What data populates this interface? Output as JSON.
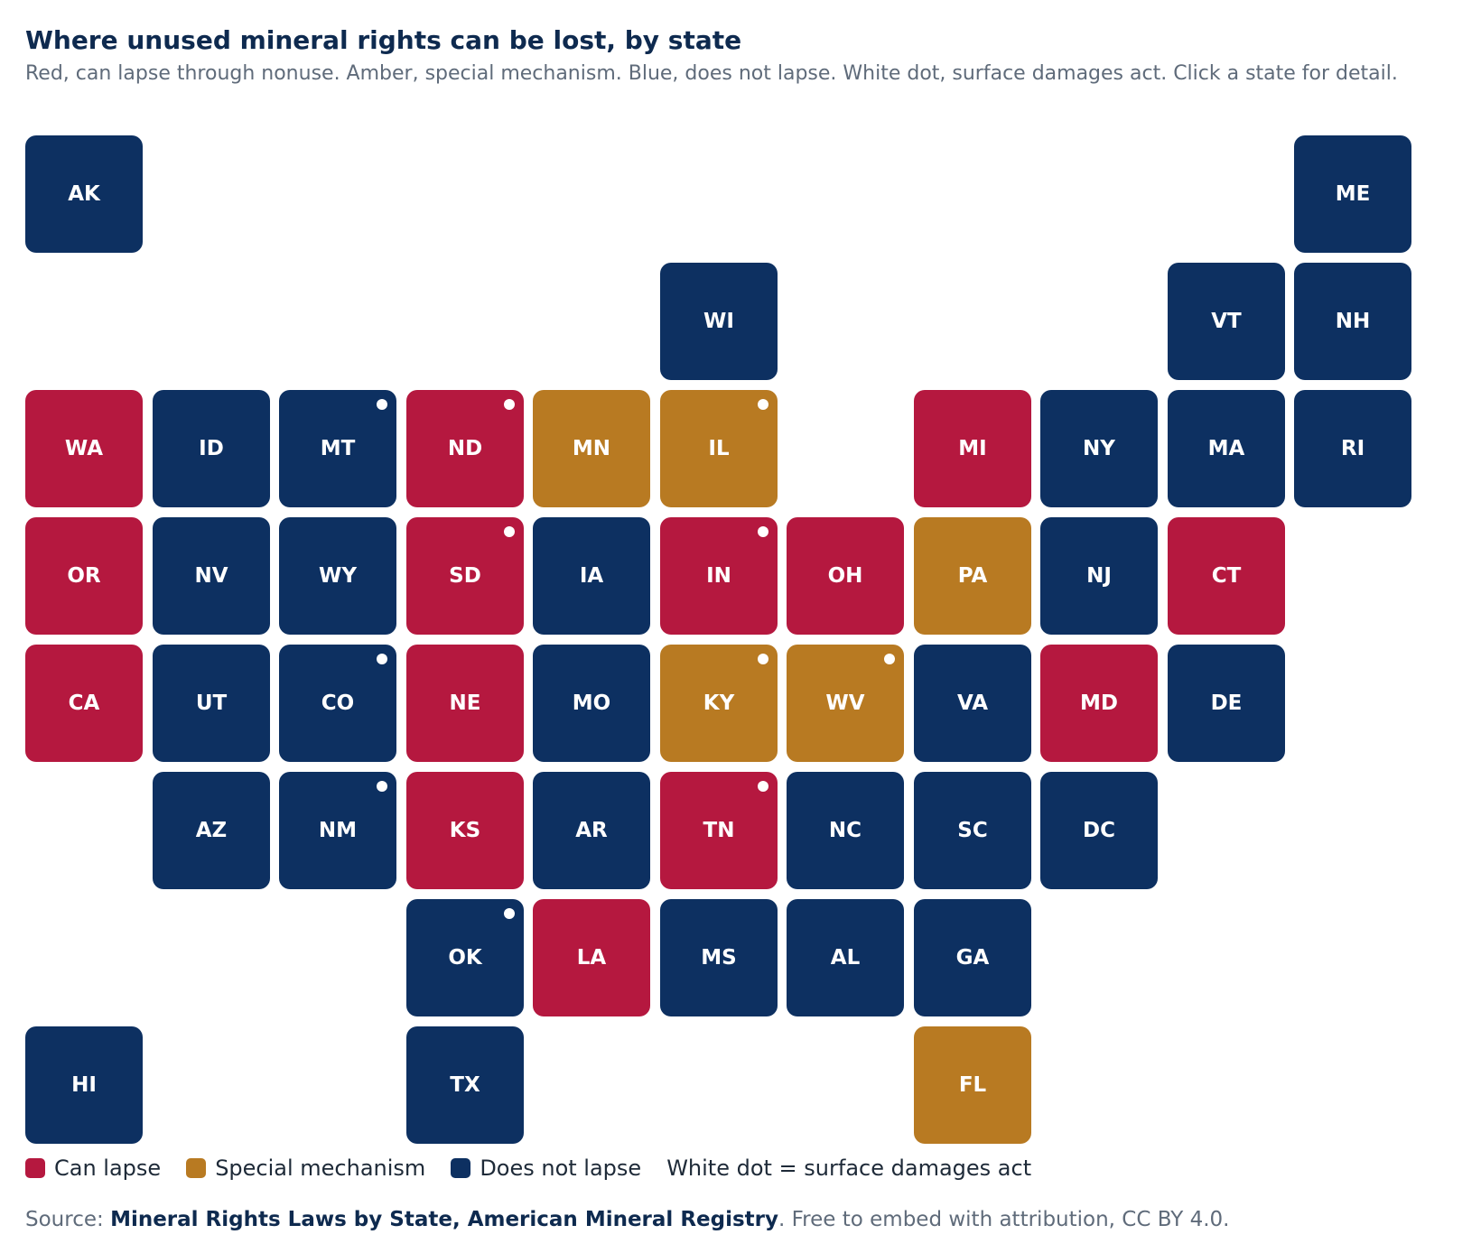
{
  "header": {
    "title": "Where unused mineral rights can be lost, by state",
    "subtitle": "Red, can lapse through nonuse. Amber, special mechanism. Blue, does not lapse. White dot, surface damages act. Click a state for detail."
  },
  "colors": {
    "lapse": "#b5183f",
    "special": "#b87a22",
    "none": "#0d3061"
  },
  "states": [
    {
      "abbr": "AK",
      "col": 0,
      "row": 0,
      "status": "none",
      "dot": false
    },
    {
      "abbr": "ME",
      "col": 10,
      "row": 0,
      "status": "none",
      "dot": false
    },
    {
      "abbr": "WI",
      "col": 5,
      "row": 1,
      "status": "none",
      "dot": false
    },
    {
      "abbr": "VT",
      "col": 9,
      "row": 1,
      "status": "none",
      "dot": false
    },
    {
      "abbr": "NH",
      "col": 10,
      "row": 1,
      "status": "none",
      "dot": false
    },
    {
      "abbr": "WA",
      "col": 0,
      "row": 2,
      "status": "lapse",
      "dot": false
    },
    {
      "abbr": "ID",
      "col": 1,
      "row": 2,
      "status": "none",
      "dot": false
    },
    {
      "abbr": "MT",
      "col": 2,
      "row": 2,
      "status": "none",
      "dot": true
    },
    {
      "abbr": "ND",
      "col": 3,
      "row": 2,
      "status": "lapse",
      "dot": true
    },
    {
      "abbr": "MN",
      "col": 4,
      "row": 2,
      "status": "special",
      "dot": false
    },
    {
      "abbr": "IL",
      "col": 5,
      "row": 2,
      "status": "special",
      "dot": true
    },
    {
      "abbr": "MI",
      "col": 7,
      "row": 2,
      "status": "lapse",
      "dot": false
    },
    {
      "abbr": "NY",
      "col": 8,
      "row": 2,
      "status": "none",
      "dot": false
    },
    {
      "abbr": "MA",
      "col": 9,
      "row": 2,
      "status": "none",
      "dot": false
    },
    {
      "abbr": "RI",
      "col": 10,
      "row": 2,
      "status": "none",
      "dot": false
    },
    {
      "abbr": "OR",
      "col": 0,
      "row": 3,
      "status": "lapse",
      "dot": false
    },
    {
      "abbr": "NV",
      "col": 1,
      "row": 3,
      "status": "none",
      "dot": false
    },
    {
      "abbr": "WY",
      "col": 2,
      "row": 3,
      "status": "none",
      "dot": false
    },
    {
      "abbr": "SD",
      "col": 3,
      "row": 3,
      "status": "lapse",
      "dot": true
    },
    {
      "abbr": "IA",
      "col": 4,
      "row": 3,
      "status": "none",
      "dot": false
    },
    {
      "abbr": "IN",
      "col": 5,
      "row": 3,
      "status": "lapse",
      "dot": true
    },
    {
      "abbr": "OH",
      "col": 6,
      "row": 3,
      "status": "lapse",
      "dot": false
    },
    {
      "abbr": "PA",
      "col": 7,
      "row": 3,
      "status": "special",
      "dot": false
    },
    {
      "abbr": "NJ",
      "col": 8,
      "row": 3,
      "status": "none",
      "dot": false
    },
    {
      "abbr": "CT",
      "col": 9,
      "row": 3,
      "status": "lapse",
      "dot": false
    },
    {
      "abbr": "CA",
      "col": 0,
      "row": 4,
      "status": "lapse",
      "dot": false
    },
    {
      "abbr": "UT",
      "col": 1,
      "row": 4,
      "status": "none",
      "dot": false
    },
    {
      "abbr": "CO",
      "col": 2,
      "row": 4,
      "status": "none",
      "dot": true
    },
    {
      "abbr": "NE",
      "col": 3,
      "row": 4,
      "status": "lapse",
      "dot": false
    },
    {
      "abbr": "MO",
      "col": 4,
      "row": 4,
      "status": "none",
      "dot": false
    },
    {
      "abbr": "KY",
      "col": 5,
      "row": 4,
      "status": "special",
      "dot": true
    },
    {
      "abbr": "WV",
      "col": 6,
      "row": 4,
      "status": "special",
      "dot": true
    },
    {
      "abbr": "VA",
      "col": 7,
      "row": 4,
      "status": "none",
      "dot": false
    },
    {
      "abbr": "MD",
      "col": 8,
      "row": 4,
      "status": "lapse",
      "dot": false
    },
    {
      "abbr": "DE",
      "col": 9,
      "row": 4,
      "status": "none",
      "dot": false
    },
    {
      "abbr": "AZ",
      "col": 1,
      "row": 5,
      "status": "none",
      "dot": false
    },
    {
      "abbr": "NM",
      "col": 2,
      "row": 5,
      "status": "none",
      "dot": true
    },
    {
      "abbr": "KS",
      "col": 3,
      "row": 5,
      "status": "lapse",
      "dot": false
    },
    {
      "abbr": "AR",
      "col": 4,
      "row": 5,
      "status": "none",
      "dot": false
    },
    {
      "abbr": "TN",
      "col": 5,
      "row": 5,
      "status": "lapse",
      "dot": true
    },
    {
      "abbr": "NC",
      "col": 6,
      "row": 5,
      "status": "none",
      "dot": false
    },
    {
      "abbr": "SC",
      "col": 7,
      "row": 5,
      "status": "none",
      "dot": false
    },
    {
      "abbr": "DC",
      "col": 8,
      "row": 5,
      "status": "none",
      "dot": false
    },
    {
      "abbr": "OK",
      "col": 3,
      "row": 6,
      "status": "none",
      "dot": true
    },
    {
      "abbr": "LA",
      "col": 4,
      "row": 6,
      "status": "lapse",
      "dot": false
    },
    {
      "abbr": "MS",
      "col": 5,
      "row": 6,
      "status": "none",
      "dot": false
    },
    {
      "abbr": "AL",
      "col": 6,
      "row": 6,
      "status": "none",
      "dot": false
    },
    {
      "abbr": "GA",
      "col": 7,
      "row": 6,
      "status": "none",
      "dot": false
    },
    {
      "abbr": "HI",
      "col": 0,
      "row": 7,
      "status": "none",
      "dot": false
    },
    {
      "abbr": "TX",
      "col": 3,
      "row": 7,
      "status": "none",
      "dot": false
    },
    {
      "abbr": "FL",
      "col": 7,
      "row": 7,
      "status": "special",
      "dot": false
    }
  ],
  "legend": {
    "lapse_label": "Can lapse",
    "special_label": "Special mechanism",
    "none_label": "Does not lapse",
    "dot_note": "White dot = surface damages act"
  },
  "source": {
    "prefix": "Source: ",
    "name": "Mineral Rights Laws by State, American Mineral Registry",
    "suffix": ". Free to embed with attribution, CC BY 4.0."
  }
}
